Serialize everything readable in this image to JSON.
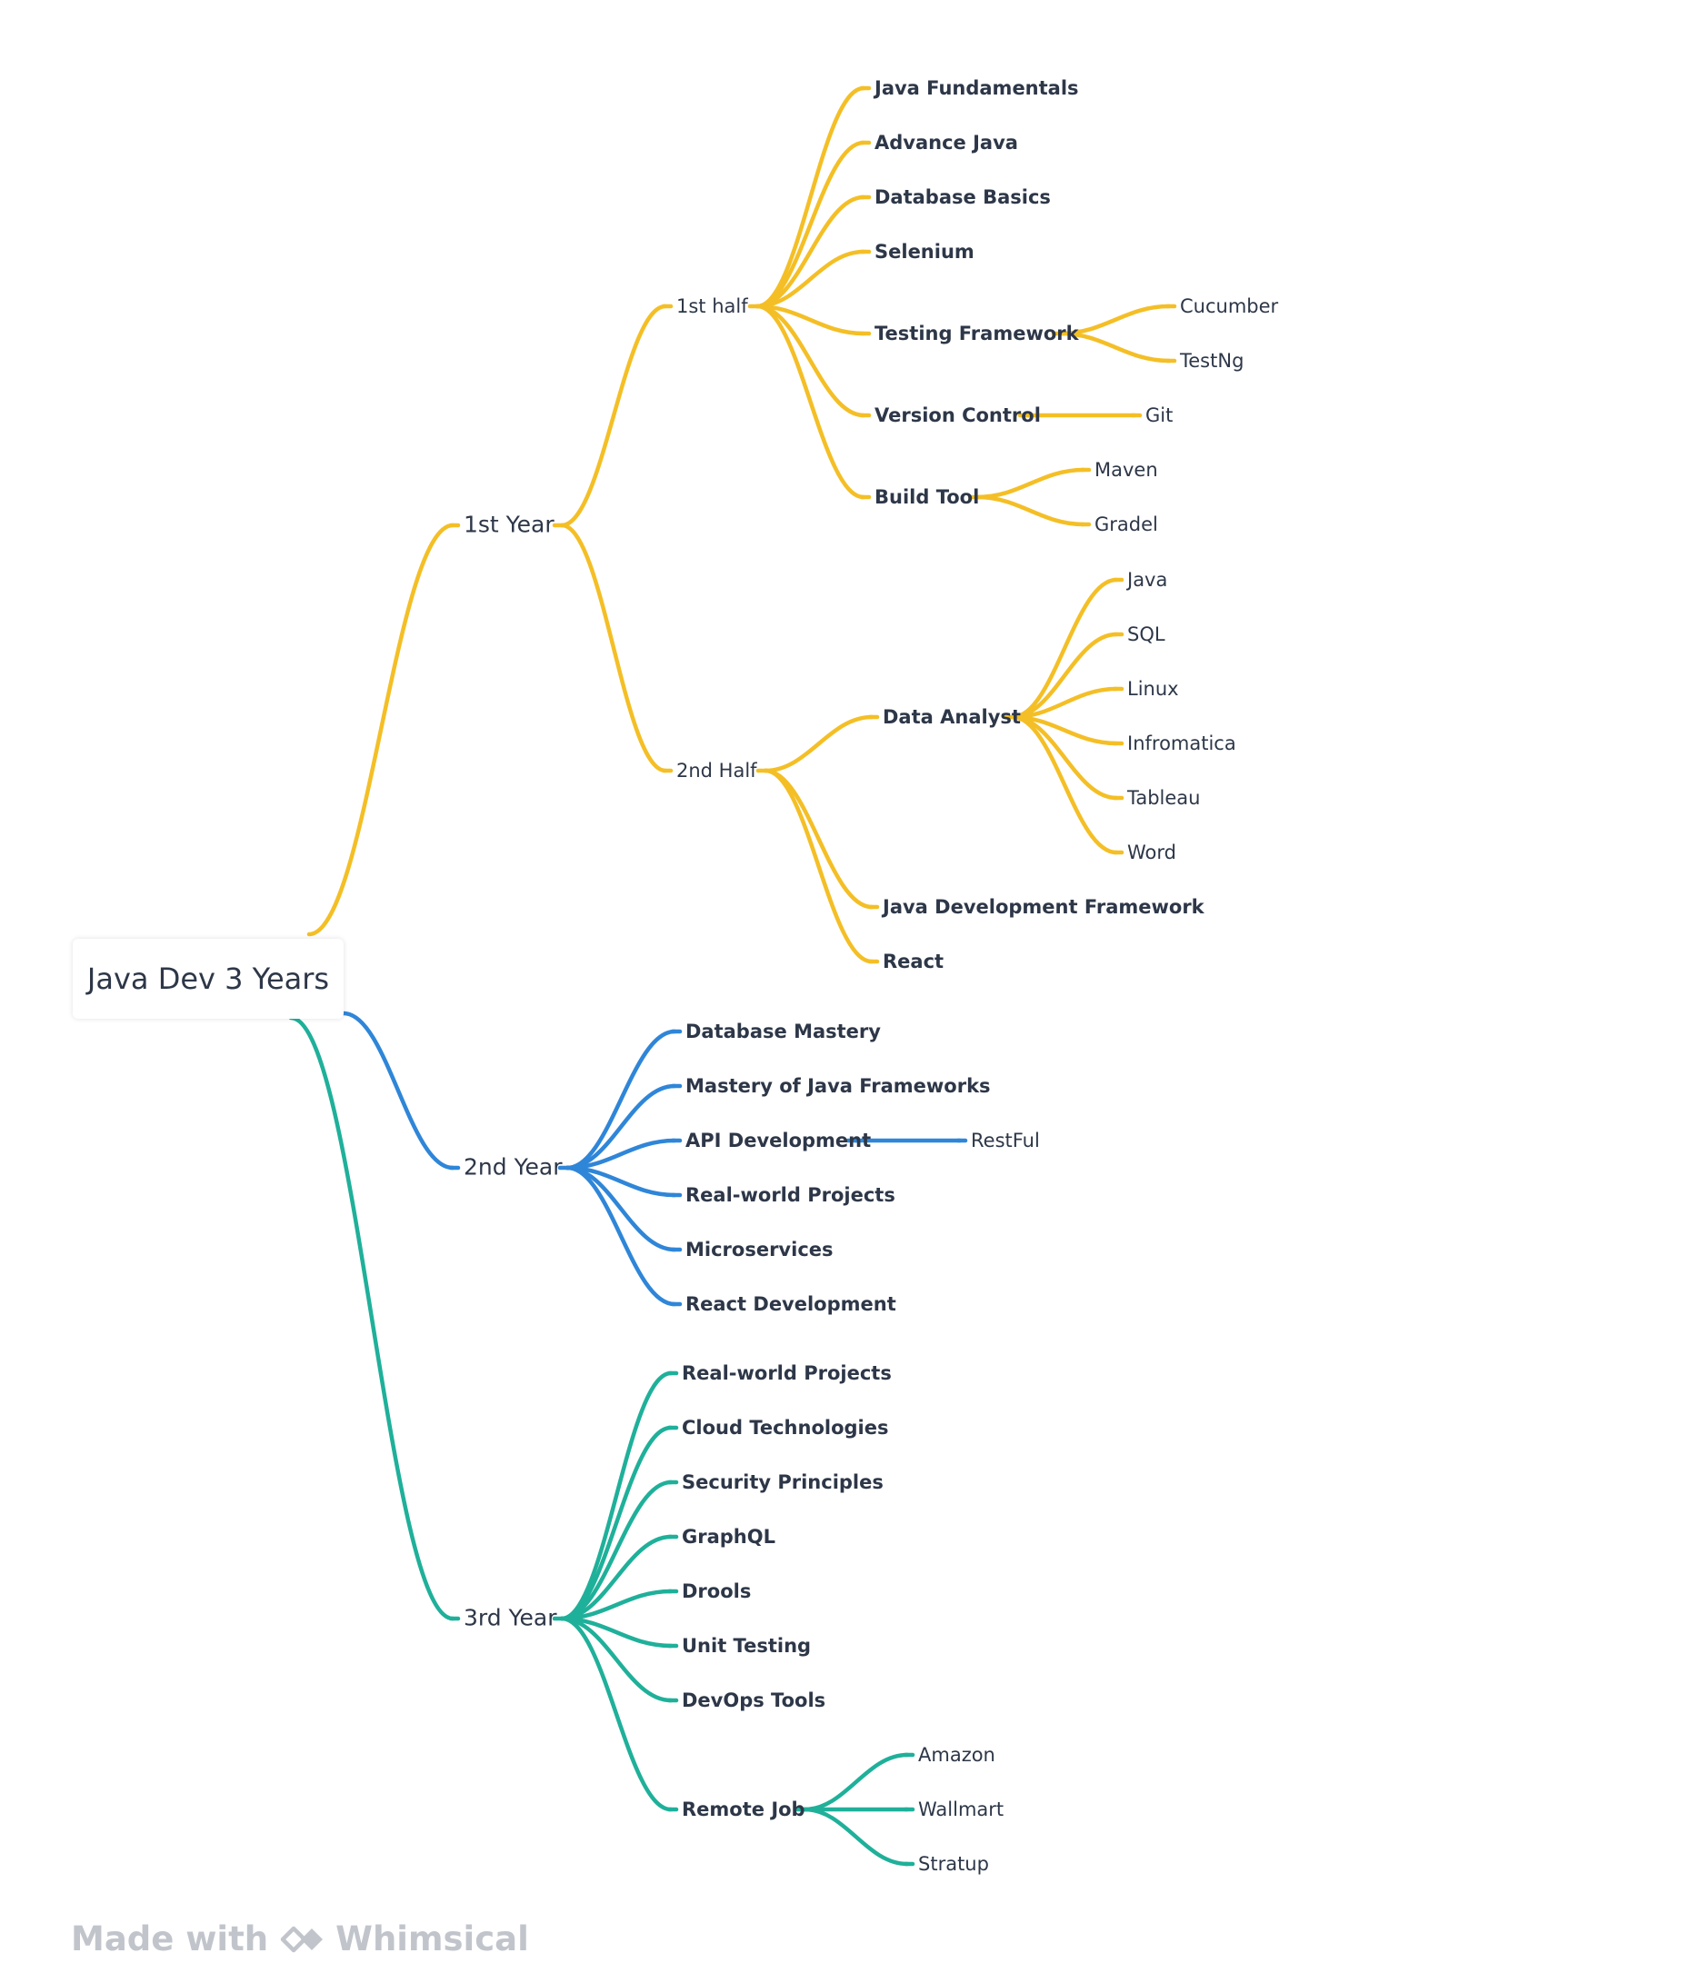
{
  "colors": {
    "year1": "#f4bf26",
    "year2": "#2f86d8",
    "year3": "#1fb09a",
    "text": "#2d3748",
    "footer": "#c1c5cb"
  },
  "mindmap": {
    "root": "Java Dev 3 Years",
    "branches": [
      {
        "label": "1st Year",
        "children": [
          {
            "label": "1st half",
            "children": [
              {
                "label": "Java Fundamentals"
              },
              {
                "label": "Advance Java"
              },
              {
                "label": "Database Basics"
              },
              {
                "label": "Selenium"
              },
              {
                "label": "Testing Framework",
                "children": [
                  {
                    "label": "Cucumber"
                  },
                  {
                    "label": "TestNg"
                  }
                ]
              },
              {
                "label": "Version Control",
                "children": [
                  {
                    "label": "Git"
                  }
                ]
              },
              {
                "label": "Build Tool",
                "children": [
                  {
                    "label": "Maven"
                  },
                  {
                    "label": "Gradel"
                  }
                ]
              }
            ]
          },
          {
            "label": "2nd Half",
            "children": [
              {
                "label": "Data Analyst",
                "children": [
                  {
                    "label": "Java"
                  },
                  {
                    "label": "SQL"
                  },
                  {
                    "label": "Linux"
                  },
                  {
                    "label": "Infromatica"
                  },
                  {
                    "label": "Tableau"
                  },
                  {
                    "label": "Word"
                  }
                ]
              },
              {
                "label": "Java Development Framework"
              },
              {
                "label": "React"
              }
            ]
          }
        ]
      },
      {
        "label": "2nd Year",
        "children": [
          {
            "label": "Database Mastery"
          },
          {
            "label": "Mastery of Java Frameworks"
          },
          {
            "label": "API Development",
            "children": [
              {
                "label": "RestFul"
              }
            ]
          },
          {
            "label": "Real-world Projects"
          },
          {
            "label": "Microservices"
          },
          {
            "label": "React Development"
          }
        ]
      },
      {
        "label": "3rd Year",
        "children": [
          {
            "label": "Real-world Projects"
          },
          {
            "label": "Cloud Technologies"
          },
          {
            "label": "Security Principles"
          },
          {
            "label": "GraphQL"
          },
          {
            "label": "Drools"
          },
          {
            "label": "Unit Testing"
          },
          {
            "label": "DevOps Tools"
          },
          {
            "label": "Remote Job",
            "children": [
              {
                "label": "Amazon"
              },
              {
                "label": "Wallmart"
              },
              {
                "label": "Stratup"
              }
            ]
          }
        ]
      }
    ]
  },
  "footer": {
    "made_with": "Made with",
    "brand": "Whimsical",
    "logo_icon": "whimsical-logo-icon"
  }
}
